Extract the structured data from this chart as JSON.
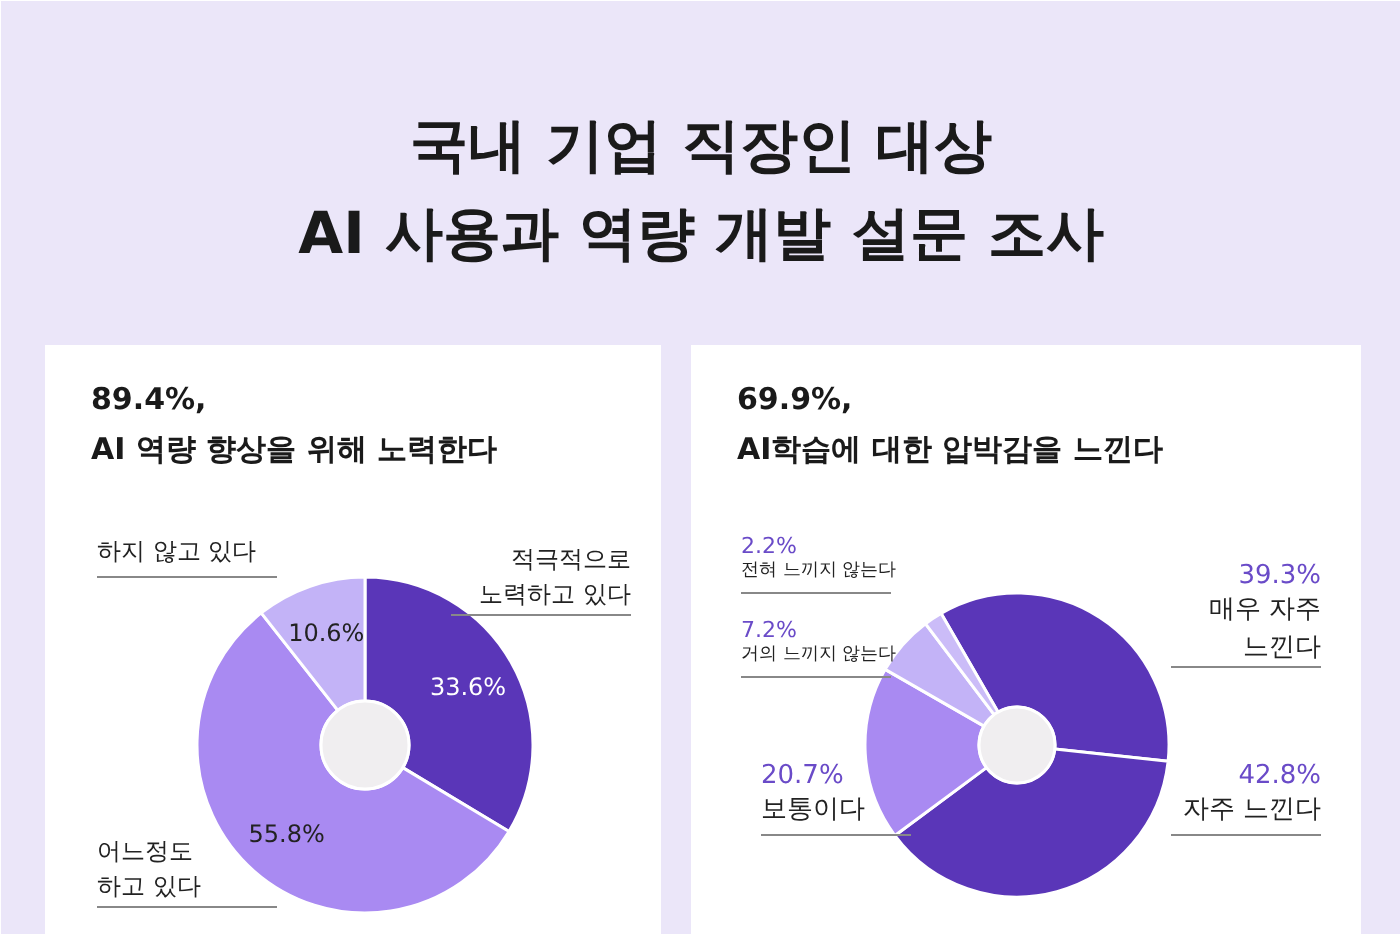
{
  "chart_data": [
    {
      "type": "donut",
      "title": "국내 기업 직장인 대상\nAI 사용과 역량 개발 설문 조사",
      "subtitle": "89.4%,\nAI 역량 향상을 위해 노력한다",
      "categories": [
        "적극적으로\n노력하고 있다",
        "어느정도\n하고 있다",
        "하지 않고 있다"
      ],
      "values": [
        33.6,
        55.8,
        10.6
      ],
      "value_labels": [
        "33.6%",
        "55.8%",
        "10.6%"
      ],
      "colors": [
        "#5a36b8",
        "#a98af2",
        "#c3b3f7"
      ]
    },
    {
      "type": "donut",
      "subtitle": "69.9%,\nAI학습에 대한 압박감을 느낀다",
      "categories": [
        "매우 자주\n느낀다",
        "자주 느낀다",
        "보통이다",
        "거의 느끼지 않는다",
        "전혀 느끼지 않는다"
      ],
      "values": [
        39.3,
        42.8,
        20.7,
        7.2,
        2.2
      ],
      "value_labels": [
        "39.3%",
        "42.8%",
        "20.7%",
        "7.2%",
        "2.2%"
      ],
      "colors": [
        "#5a36b8",
        "#5a36b8",
        "#a98af2",
        "#c3b3f7",
        "#cbbcf8"
      ]
    }
  ]
}
